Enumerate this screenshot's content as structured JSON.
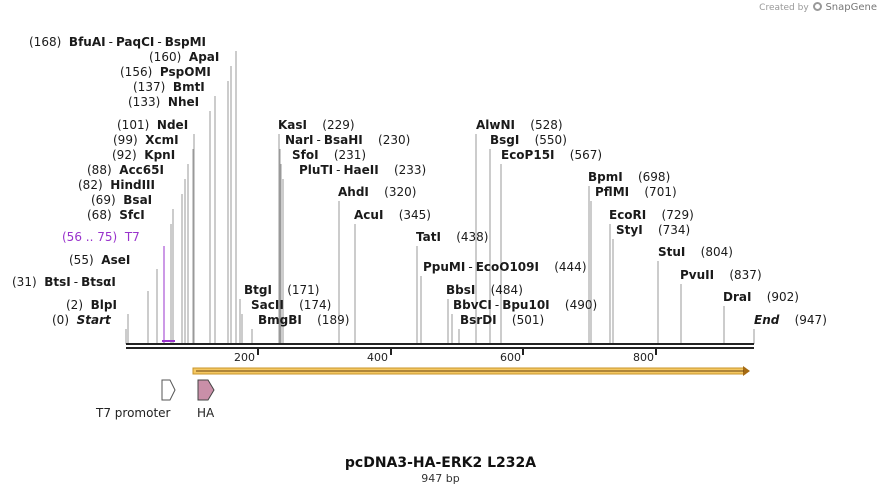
{
  "credit": {
    "created_by": "Created by",
    "brand": "SnapGene"
  },
  "title": "pcDNA3-HA-ERK2 L232A",
  "length_label": "947 bp",
  "axis_ticks": [
    "200",
    "400",
    "600",
    "800"
  ],
  "sites": [
    {
      "pos": "(168)",
      "parts": [
        "BfuAI",
        "PaqCI",
        "BspMI"
      ]
    },
    {
      "pos": "(160)",
      "parts": [
        "ApaI"
      ]
    },
    {
      "pos": "(156)",
      "parts": [
        "PspOMI"
      ]
    },
    {
      "pos": "(137)",
      "parts": [
        "BmtI"
      ]
    },
    {
      "pos": "(133)",
      "parts": [
        "NheI"
      ]
    },
    {
      "pos": "(101)",
      "parts": [
        "NdeI"
      ]
    },
    {
      "pos": "(99)",
      "parts": [
        "XcmI"
      ]
    },
    {
      "pos": "(92)",
      "parts": [
        "KpnI"
      ]
    },
    {
      "pos": "(88)",
      "parts": [
        "Acc65I"
      ]
    },
    {
      "pos": "(82)",
      "parts": [
        "HindIII"
      ]
    },
    {
      "pos": "(69)",
      "parts": [
        "BsaI"
      ]
    },
    {
      "pos": "(68)",
      "parts": [
        "SfcI"
      ]
    },
    {
      "pos": "(56 .. 75)",
      "parts": [
        "T7"
      ]
    },
    {
      "pos": "(55)",
      "parts": [
        "AseI"
      ]
    },
    {
      "pos": "(31)",
      "parts": [
        "BtsI",
        "BtsαI"
      ]
    },
    {
      "pos": "(2)",
      "parts": [
        "BlpI"
      ]
    },
    {
      "pos": "(0)",
      "parts": [
        "Start"
      ]
    },
    {
      "pos": "(229)",
      "parts": [
        "KasI"
      ]
    },
    {
      "pos": "(230)",
      "parts": [
        "NarI",
        "BsaHI"
      ]
    },
    {
      "pos": "(231)",
      "parts": [
        "SfoI"
      ]
    },
    {
      "pos": "(233)",
      "parts": [
        "PluTI",
        "HaeII"
      ]
    },
    {
      "pos": "(320)",
      "parts": [
        "AhdI"
      ]
    },
    {
      "pos": "(345)",
      "parts": [
        "AcuI"
      ]
    },
    {
      "pos": "(171)",
      "parts": [
        "BtgI"
      ]
    },
    {
      "pos": "(174)",
      "parts": [
        "SacII"
      ]
    },
    {
      "pos": "(189)",
      "parts": [
        "BmgBI"
      ]
    },
    {
      "pos": "(528)",
      "parts": [
        "AlwNI"
      ]
    },
    {
      "pos": "(550)",
      "parts": [
        "BsgI"
      ]
    },
    {
      "pos": "(567)",
      "parts": [
        "EcoP15I"
      ]
    },
    {
      "pos": "(438)",
      "parts": [
        "TatI"
      ]
    },
    {
      "pos": "(444)",
      "parts": [
        "PpuMI",
        "EcoO109I"
      ]
    },
    {
      "pos": "(484)",
      "parts": [
        "BbsI"
      ]
    },
    {
      "pos": "(490)",
      "parts": [
        "BbvCI",
        "Bpu10I"
      ]
    },
    {
      "pos": "(501)",
      "parts": [
        "BsrDI"
      ]
    },
    {
      "pos": "(698)",
      "parts": [
        "BpmI"
      ]
    },
    {
      "pos": "(701)",
      "parts": [
        "PflMI"
      ]
    },
    {
      "pos": "(729)",
      "parts": [
        "EcoRI"
      ]
    },
    {
      "pos": "(734)",
      "parts": [
        "StyI"
      ]
    },
    {
      "pos": "(804)",
      "parts": [
        "StuI"
      ]
    },
    {
      "pos": "(837)",
      "parts": [
        "PvuII"
      ]
    },
    {
      "pos": "(902)",
      "parts": [
        "DraI"
      ]
    },
    {
      "pos": "(947)",
      "parts": [
        "End"
      ]
    }
  ],
  "features": [
    {
      "label": "T7 promoter",
      "color": "#ffffff"
    },
    {
      "label": "HA",
      "color": "#c98fa8"
    }
  ],
  "orf_color": "#f5c862"
}
